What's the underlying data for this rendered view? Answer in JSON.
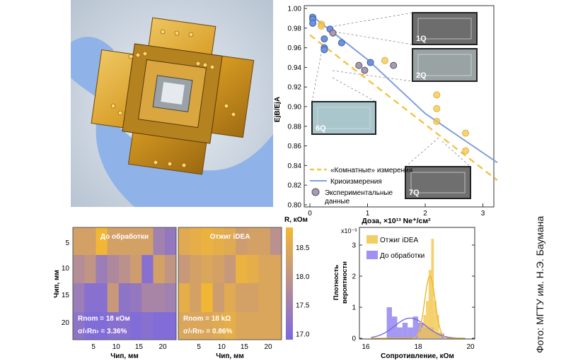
{
  "photo": {
    "subject": "gold-plated sample holder in gloved hand"
  },
  "credit": "Фото: МГТУ им. Н.Э. Баумана",
  "colors": {
    "blue": "#7f9fe0",
    "orange": "#f2c64a",
    "grey": "#a99ab3",
    "purple": "#7b68e0",
    "gold": "#f5b830"
  },
  "chart_data": [
    {
      "type": "scatter",
      "ylabel": "EjB/EjA",
      "xlabel": "Доза, ×10¹³ Ne⁺/см²",
      "xlim": [
        0,
        3.25
      ],
      "ylim": [
        0.8,
        1.0
      ],
      "xticks": [
        "0",
        "1",
        "2",
        "3"
      ],
      "yticks": [
        "0.80",
        "0.82",
        "0.84",
        "0.86",
        "0.88",
        "0.90",
        "0.92",
        "0.94",
        "0.96",
        "0.98",
        "1.00"
      ],
      "legend": [
        "«Комнатные» измерения",
        "Криоизмерения",
        "Экспериментальные",
        "данные"
      ],
      "series": [
        {
          "name": "Криоизмерения (точки)",
          "points": [
            [
              0.05,
              0.991
            ],
            [
              0.05,
              0.989
            ],
            [
              0.05,
              0.985
            ],
            [
              0.25,
              0.969
            ],
            [
              0.25,
              0.96
            ],
            [
              0.25,
              0.958
            ],
            [
              0.35,
              0.979
            ],
            [
              0.55,
              0.965
            ],
            [
              1.05,
              0.945
            ]
          ]
        },
        {
          "name": "«Комнатные» измерения (точки)",
          "points": [
            [
              0.2,
              0.984
            ],
            [
              0.2,
              0.982
            ],
            [
              1.3,
              0.947
            ],
            [
              2.2,
              0.912
            ],
            [
              2.2,
              0.898
            ],
            [
              2.2,
              0.885
            ],
            [
              2.7,
              0.873
            ],
            [
              2.7,
              0.855
            ]
          ]
        },
        {
          "name": "Экспериментальные данные",
          "points": [
            [
              0.4,
              0.975
            ],
            [
              0.85,
              0.942
            ],
            [
              0.95,
              0.937
            ],
            [
              1.45,
              0.942
            ]
          ]
        },
        {
          "name": "Криоизмерения",
          "line": [
            [
              0,
              0.994
            ],
            [
              1,
              0.948
            ],
            [
              2,
              0.893
            ],
            [
              3.25,
              0.843
            ]
          ]
        },
        {
          "name": "«Комнатные» измерения",
          "line": [
            [
              0,
              0.973
            ],
            [
              3.25,
              0.825
            ]
          ]
        }
      ],
      "insets": [
        "1Q",
        "2Q",
        "6Q",
        "7Q"
      ]
    },
    {
      "type": "heatmap",
      "panels": [
        {
          "title": "До обработки",
          "rnom": "Rnom = 18 кОм",
          "sigma": "σ/‹Rn› = 3.36%",
          "values": [
            [
              18.3,
              18.3,
              18.8,
              18.3,
              18.3,
              18.3,
              18.3,
              17.5,
              17.3
            ],
            [
              17.8,
              18.0,
              17.4,
              17.7,
              17.9,
              18.2,
              17.1,
              18.3,
              18.0
            ],
            [
              17.4,
              17.1,
              17.1,
              18.1,
              17.2,
              17.3,
              17.6,
              17.6,
              17.5
            ],
            [
              17.2,
              17.0,
              17.0,
              17.1,
              17.1,
              17.0,
              17.1,
              17.0,
              17.0
            ]
          ]
        },
        {
          "title": "Отжиг iDEA",
          "rnom": "Rnom = 18 kΩ",
          "sigma": "σ/‹Rn› = 0.86%",
          "values": [
            [
              18.5,
              18.6,
              18.7,
              18.6,
              18.5,
              18.2,
              18.3,
              18.3,
              17.9
            ],
            [
              18.1,
              18.3,
              18.4,
              18.3,
              18.1,
              18.7,
              18.6,
              18.4,
              18.4
            ],
            [
              18.6,
              18.3,
              18.8,
              18.2,
              18.5,
              18.3,
              18.3,
              18.4,
              18.4
            ],
            [
              18.4,
              18.4,
              18.4,
              18.5,
              18.6,
              18.4,
              18.4,
              18.4,
              18.4
            ]
          ]
        }
      ],
      "xlabel": "Чип, мм",
      "ylabel": "Чип, мм",
      "xticks": [
        "5",
        "10",
        "15",
        "20"
      ],
      "yticks": [
        "5",
        "10",
        "15",
        "20"
      ],
      "colorbar": {
        "label": "R, кОм",
        "ticks": [
          "17.0",
          "17.5",
          "18.0",
          "18.5"
        ],
        "range": [
          16.9,
          18.85
        ]
      }
    },
    {
      "type": "bar",
      "title": "",
      "xlabel": "Сопротивление, кОм",
      "ylabel": [
        "Плотность",
        "вероятности"
      ],
      "yscale": "x10⁻³",
      "xlim": [
        16,
        20
      ],
      "ylim": [
        0,
        3.3
      ],
      "xticks": [
        "16",
        "18",
        "20"
      ],
      "yticks": [
        "0",
        "1",
        "2",
        "3"
      ],
      "legend": [
        "Отжиг iDEA",
        "До обработки"
      ],
      "series": [
        {
          "name": "До обработки",
          "bin_width": 0.2,
          "bins": [
            [
              16.8,
              1.0
            ],
            [
              17.0,
              0.7
            ],
            [
              17.2,
              0.35
            ],
            [
              17.4,
              0.5
            ],
            [
              17.6,
              0.35
            ],
            [
              17.8,
              0.7
            ],
            [
              18.0,
              0.5
            ],
            [
              18.2,
              0.35
            ],
            [
              18.4,
              0.35
            ],
            [
              18.6,
              0.15
            ],
            [
              18.8,
              0.15
            ]
          ],
          "fit": {
            "mean": 17.7,
            "sd": 0.6,
            "peak": 0.65
          }
        },
        {
          "name": "Отжиг iDEA",
          "bin_width": 0.1,
          "bins": [
            [
              18.0,
              0.2
            ],
            [
              18.1,
              0.35
            ],
            [
              18.2,
              0.75
            ],
            [
              18.3,
              1.2
            ],
            [
              18.4,
              2.2
            ],
            [
              18.5,
              3.2
            ],
            [
              18.6,
              1.2
            ],
            [
              18.7,
              0.75
            ],
            [
              18.8,
              0.2
            ]
          ],
          "fit": {
            "mean": 18.45,
            "sd": 0.2,
            "peak": 2.0
          }
        }
      ]
    }
  ]
}
